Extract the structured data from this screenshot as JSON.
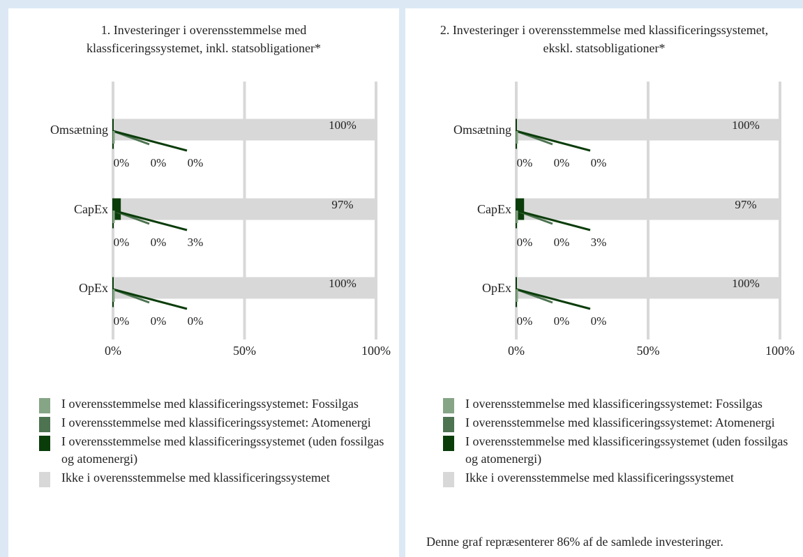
{
  "colors": {
    "fossil": "#86a586",
    "atom": "#4d7350",
    "aligned": "#0b3d0b",
    "not_aligned": "#d8d8d8",
    "grid": "#d8d8d8"
  },
  "legend": [
    {
      "label": "I overensstemmelse med klassificeringssystemet: Fossilgas",
      "color": "#86a586"
    },
    {
      "label": "I overensstemmelse med klassificeringssystemet: Atomenergi",
      "color": "#4d7350"
    },
    {
      "label": "I overensstemmelse med klassificeringssystemet (uden fossilgas og atomenergi)",
      "color": "#0b3d0b"
    },
    {
      "label": "Ikke i overensstemmelse med klassificeringssystemet",
      "color": "#d8d8d8"
    }
  ],
  "note": "Denne graf repræsenterer 86% af de samlede investeringer.",
  "chart_data": [
    {
      "type": "bar",
      "orientation": "horizontal",
      "stacked": true,
      "title": "1. Investeringer i overensstemmelse med\nklassficeringssystemet, inkl. statsobligationer*",
      "categories": [
        "Omsætning",
        "CapEx",
        "OpEx"
      ],
      "xlim": [
        0,
        100
      ],
      "xticks": [
        "0%",
        "50%",
        "100%"
      ],
      "grid": true,
      "series": [
        {
          "name": "I overensstemmelse med klassificeringssystemet: Fossilgas",
          "values": [
            0,
            0,
            0
          ],
          "labels": [
            "0%",
            "0%",
            "0%"
          ]
        },
        {
          "name": "I overensstemmelse med klassificeringssystemet: Atomenergi",
          "values": [
            0,
            0,
            0
          ],
          "labels": [
            "0%",
            "0%",
            "0%"
          ]
        },
        {
          "name": "I overensstemmelse med klassificeringssystemet (uden fossilgas og atomenergi)",
          "values": [
            0,
            3,
            0
          ],
          "labels": [
            "0%",
            "3%",
            "0%"
          ]
        },
        {
          "name": "Ikke i overensstemmelse med klassificeringssystemet",
          "values": [
            100,
            97,
            100
          ],
          "labels": [
            "100%",
            "97%",
            "100%"
          ]
        }
      ]
    },
    {
      "type": "bar",
      "orientation": "horizontal",
      "stacked": true,
      "title": "2. Investeringer i overensstemmelse med klassificeringssystemet,\nekskl. statsobligationer*",
      "categories": [
        "Omsætning",
        "CapEx",
        "OpEx"
      ],
      "xlim": [
        0,
        100
      ],
      "xticks": [
        "0%",
        "50%",
        "100%"
      ],
      "grid": true,
      "series": [
        {
          "name": "I overensstemmelse med klassificeringssystemet: Fossilgas",
          "values": [
            0,
            0,
            0
          ],
          "labels": [
            "0%",
            "0%",
            "0%"
          ]
        },
        {
          "name": "I overensstemmelse med klassificeringssystemet: Atomenergi",
          "values": [
            0,
            0,
            0
          ],
          "labels": [
            "0%",
            "0%",
            "0%"
          ]
        },
        {
          "name": "I overensstemmelse med klassificeringssystemet (uden fossilgas og atomenergi)",
          "values": [
            0,
            3,
            0
          ],
          "labels": [
            "0%",
            "3%",
            "0%"
          ]
        },
        {
          "name": "Ikke i overensstemmelse med klassificeringssystemet",
          "values": [
            100,
            97,
            100
          ],
          "labels": [
            "100%",
            "97%",
            "100%"
          ]
        }
      ]
    }
  ]
}
